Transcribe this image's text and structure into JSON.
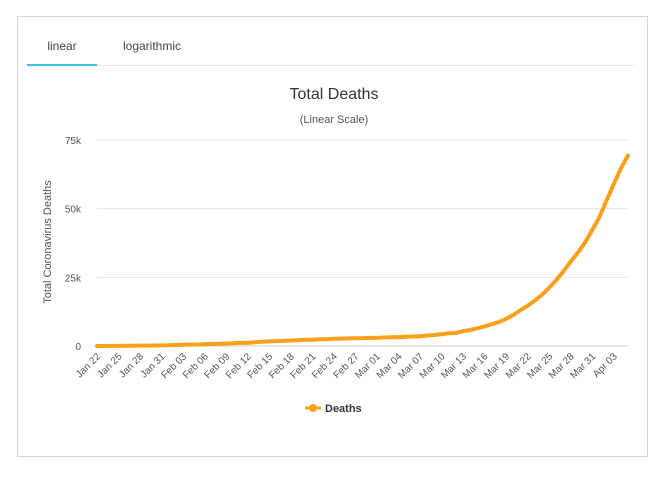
{
  "tabs": [
    {
      "label": "linear",
      "active": true
    },
    {
      "label": "logarithmic",
      "active": false
    }
  ],
  "chart_data": {
    "type": "line",
    "title": "Total Deaths",
    "subtitle": "(Linear Scale)",
    "ylabel": "Total Coronavirus Deaths",
    "xlabel": "",
    "ylim": [
      0,
      75000
    ],
    "yticks": [
      0,
      25000,
      50000,
      75000
    ],
    "ytick_labels": [
      "0",
      "25k",
      "50k",
      "75k"
    ],
    "grid": true,
    "legend_position": "bottom-center",
    "color": "#f7a11a",
    "x": [
      "Jan 22",
      "Jan 23",
      "Jan 24",
      "Jan 25",
      "Jan 26",
      "Jan 27",
      "Jan 28",
      "Jan 29",
      "Jan 30",
      "Jan 31",
      "Feb 01",
      "Feb 02",
      "Feb 03",
      "Feb 04",
      "Feb 05",
      "Feb 06",
      "Feb 07",
      "Feb 08",
      "Feb 09",
      "Feb 10",
      "Feb 11",
      "Feb 12",
      "Feb 13",
      "Feb 14",
      "Feb 15",
      "Feb 16",
      "Feb 17",
      "Feb 18",
      "Feb 19",
      "Feb 20",
      "Feb 21",
      "Feb 22",
      "Feb 23",
      "Feb 24",
      "Feb 25",
      "Feb 26",
      "Feb 27",
      "Feb 28",
      "Feb 29",
      "Mar 01",
      "Mar 02",
      "Mar 03",
      "Mar 04",
      "Mar 05",
      "Mar 06",
      "Mar 07",
      "Mar 08",
      "Mar 09",
      "Mar 10",
      "Mar 11",
      "Mar 12",
      "Mar 13",
      "Mar 14",
      "Mar 15",
      "Mar 16",
      "Mar 17",
      "Mar 18",
      "Mar 19",
      "Mar 20",
      "Mar 21",
      "Mar 22",
      "Mar 23",
      "Mar 24",
      "Mar 25",
      "Mar 26",
      "Mar 27",
      "Mar 28",
      "Mar 29",
      "Mar 30",
      "Mar 31",
      "Apr 01",
      "Apr 02",
      "Apr 03",
      "Apr 04",
      "Apr 05"
    ],
    "xtick_labels": [
      "Jan 22",
      "Jan 25",
      "Jan 28",
      "Jan 31",
      "Feb 03",
      "Feb 06",
      "Feb 09",
      "Feb 12",
      "Feb 15",
      "Feb 18",
      "Feb 21",
      "Feb 24",
      "Feb 27",
      "Mar 01",
      "Mar 04",
      "Mar 07",
      "Mar 10",
      "Mar 13",
      "Mar 16",
      "Mar 19",
      "Mar 22",
      "Mar 25",
      "Mar 28",
      "Mar 31",
      "Apr 03"
    ],
    "series": [
      {
        "name": "Deaths",
        "values": [
          17,
          18,
          26,
          42,
          56,
          82,
          131,
          133,
          171,
          213,
          259,
          362,
          426,
          492,
          564,
          634,
          719,
          806,
          906,
          1013,
          1113,
          1118,
          1371,
          1523,
          1666,
          1770,
          1868,
          2007,
          2122,
          2247,
          2251,
          2458,
          2469,
          2629,
          2708,
          2770,
          2814,
          2872,
          2941,
          2996,
          3085,
          3160,
          3254,
          3348,
          3460,
          3558,
          3802,
          3988,
          4262,
          4615,
          4720,
          5404,
          5819,
          6440,
          7126,
          7905,
          8733,
          9867,
          11299,
          13017,
          14623,
          16497,
          18615,
          21181,
          23970,
          27198,
          30652,
          33925,
          37582,
          42107,
          46809,
          52983,
          58787,
          64606,
          69374
        ]
      }
    ]
  }
}
